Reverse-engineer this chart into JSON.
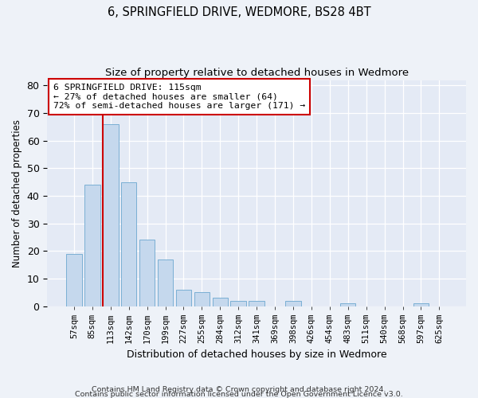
{
  "title1": "6, SPRINGFIELD DRIVE, WEDMORE, BS28 4BT",
  "title2": "Size of property relative to detached houses in Wedmore",
  "xlabel": "Distribution of detached houses by size in Wedmore",
  "ylabel": "Number of detached properties",
  "categories": [
    "57sqm",
    "85sqm",
    "113sqm",
    "142sqm",
    "170sqm",
    "199sqm",
    "227sqm",
    "255sqm",
    "284sqm",
    "312sqm",
    "341sqm",
    "369sqm",
    "398sqm",
    "426sqm",
    "454sqm",
    "483sqm",
    "511sqm",
    "540sqm",
    "568sqm",
    "597sqm",
    "625sqm"
  ],
  "values": [
    19,
    44,
    66,
    45,
    24,
    17,
    6,
    5,
    3,
    2,
    2,
    0,
    2,
    0,
    0,
    1,
    0,
    0,
    0,
    1,
    0
  ],
  "bar_color": "#c5d8ed",
  "bar_edge_color": "#7aafd4",
  "ylim": [
    0,
    82
  ],
  "yticks": [
    0,
    10,
    20,
    30,
    40,
    50,
    60,
    70,
    80
  ],
  "ann_line1": "6 SPRINGFIELD DRIVE: 115sqm",
  "ann_line2": "← 27% of detached houses are smaller (64)",
  "ann_line3": "72% of semi-detached houses are larger (171) →",
  "ann_edge_color": "#cc0000",
  "red_line_color": "#cc0000",
  "property_bin_index": 2,
  "footer1": "Contains HM Land Registry data © Crown copyright and database right 2024.",
  "footer2": "Contains public sector information licensed under the Open Government Licence v3.0.",
  "fig_bg_color": "#eef2f8",
  "plot_bg_color": "#e4eaf5",
  "grid_color": "#d0d8e8"
}
